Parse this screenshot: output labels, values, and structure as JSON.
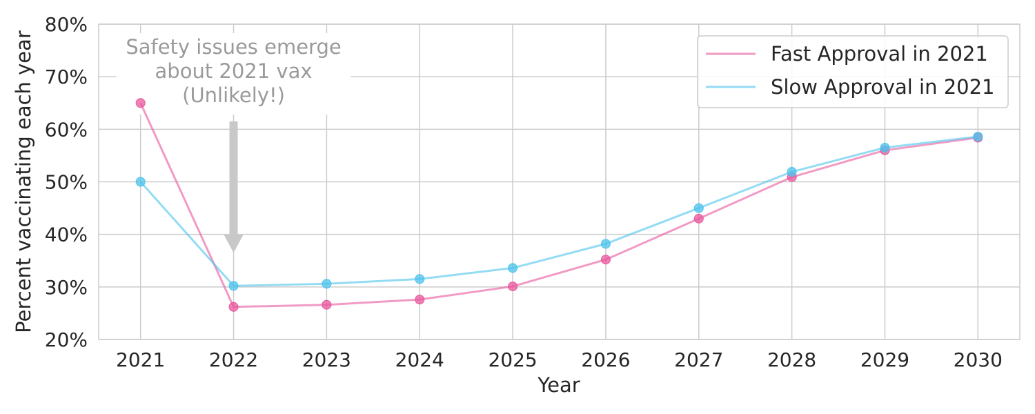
{
  "chart_data": {
    "type": "line",
    "x": [
      2021,
      2022,
      2023,
      2024,
      2025,
      2026,
      2027,
      2028,
      2029,
      2030
    ],
    "x_tick_labels": [
      "2021",
      "2022",
      "2023",
      "2024",
      "2025",
      "2026",
      "2027",
      "2028",
      "2029",
      "2030"
    ],
    "y_tick_labels": [
      "20%",
      "30%",
      "40%",
      "50%",
      "60%",
      "70%",
      "80%"
    ],
    "y_ticks": [
      20,
      30,
      40,
      50,
      60,
      70,
      80
    ],
    "xlabel": "Year",
    "ylabel": "Percent vaccinating each year",
    "xlim": [
      2020.55,
      2030.45
    ],
    "ylim": [
      20,
      80
    ],
    "grid": true,
    "legend_position": "top-right",
    "series": [
      {
        "name": "Fast Approval in 2021",
        "color": "#e8579c",
        "values": [
          65.0,
          26.2,
          26.6,
          27.6,
          30.1,
          35.2,
          43.0,
          50.9,
          56.0,
          58.4
        ]
      },
      {
        "name": "Slow Approval in 2021",
        "color": "#4cc3ec",
        "values": [
          50.0,
          30.2,
          30.6,
          31.5,
          33.6,
          38.2,
          45.0,
          51.9,
          56.5,
          58.6
        ]
      }
    ],
    "annotation": {
      "lines": [
        "Safety issues emerge",
        "about 2021 vax",
        "(Unlikely!)"
      ],
      "arrow_x": 2022,
      "arrow_from_y": 61.5,
      "arrow_to_y": 36.5,
      "text_x": 2022,
      "color": "#c8c8c8"
    }
  }
}
